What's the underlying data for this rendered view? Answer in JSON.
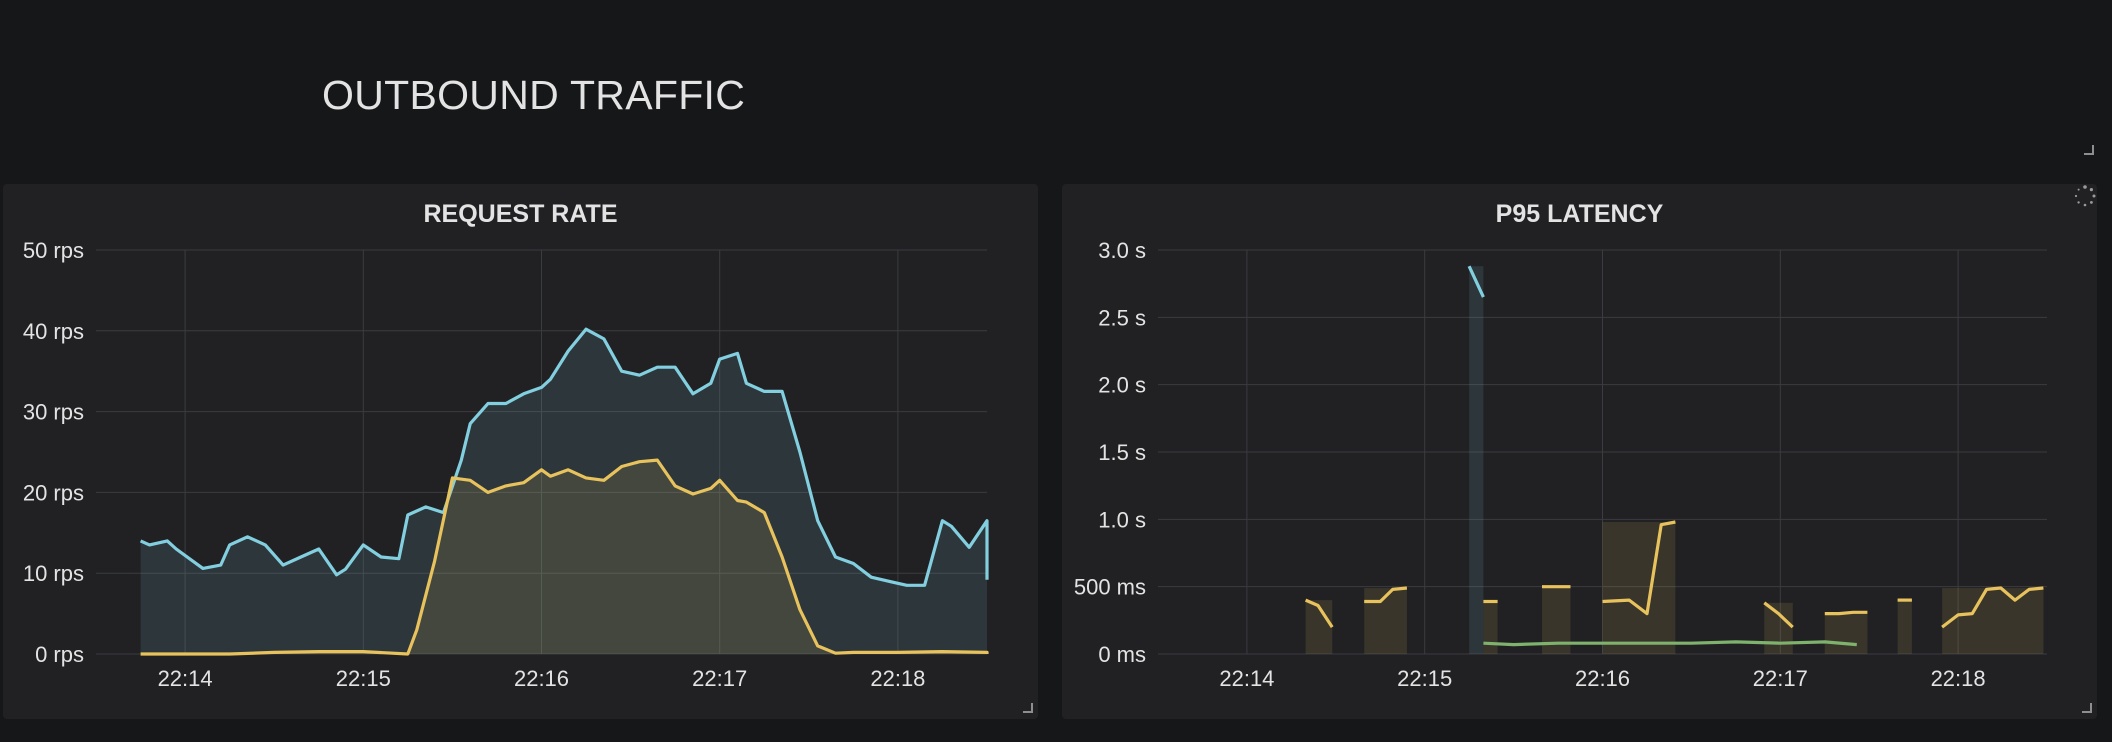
{
  "row": {
    "title": "OUTBOUND TRAFFIC"
  },
  "chart_data": [
    {
      "type": "area",
      "title": "REQUEST RATE",
      "ylim": [
        0,
        50
      ],
      "yticks": [
        0,
        10,
        20,
        30,
        40,
        50
      ],
      "ytick_labels": [
        "0 rps",
        "10 rps",
        "20 rps",
        "30 rps",
        "40 rps",
        "50 rps"
      ],
      "xlim": [
        -0.5,
        4.5
      ],
      "xticks": [
        0,
        1,
        2,
        3,
        4
      ],
      "xtick_labels": [
        "22:14",
        "22:15",
        "22:16",
        "22:17",
        "22:18"
      ],
      "grid": true,
      "series": [
        {
          "color": "#82cfe0",
          "x": [
            -0.25,
            -0.2,
            -0.1,
            -0.05,
            0.1,
            0.2,
            0.25,
            0.35,
            0.45,
            0.55,
            0.65,
            0.75,
            0.85,
            0.9,
            1.0,
            1.1,
            1.2,
            1.25,
            1.35,
            1.45,
            1.55,
            1.6,
            1.7,
            1.8,
            1.9,
            2.0,
            2.05,
            2.15,
            2.25,
            2.35,
            2.45,
            2.55,
            2.65,
            2.75,
            2.85,
            2.95,
            3.0,
            3.1,
            3.15,
            3.25,
            3.35,
            3.45,
            3.55,
            3.65,
            3.75,
            3.85,
            3.95,
            4.05,
            4.15,
            4.25,
            4.3,
            4.4,
            4.5,
            4.6,
            4.75
          ],
          "values": [
            14,
            13.5,
            14,
            13,
            10.6,
            11,
            13.5,
            14.5,
            13.5,
            11,
            12,
            13,
            9.8,
            10.5,
            13.5,
            12,
            11.8,
            17.2,
            18.2,
            17.5,
            24,
            28.5,
            31,
            31,
            32.2,
            33,
            34,
            37.5,
            40.2,
            39,
            35,
            34.5,
            35.5,
            35.5,
            32.2,
            33.5,
            36.5,
            37.2,
            33.5,
            32.5,
            32.5,
            25,
            16.5,
            12,
            11.2,
            9.5,
            9,
            8.5,
            8.5,
            16.5,
            15.8,
            13.2,
            16.5,
            15.5,
            9.2
          ]
        },
        {
          "color": "#e8c25c",
          "x": [
            -0.25,
            0.0,
            0.25,
            0.5,
            0.75,
            1.0,
            1.25,
            1.3,
            1.4,
            1.5,
            1.6,
            1.7,
            1.8,
            1.9,
            2.0,
            2.05,
            2.15,
            2.25,
            2.35,
            2.45,
            2.55,
            2.65,
            2.75,
            2.85,
            2.95,
            3.0,
            3.1,
            3.15,
            3.25,
            3.35,
            3.45,
            3.55,
            3.65,
            3.75,
            4.0,
            4.25,
            4.5,
            4.75
          ],
          "values": [
            0,
            0,
            0,
            0.2,
            0.3,
            0.3,
            0,
            3,
            11.5,
            21.8,
            21.5,
            20,
            20.8,
            21.2,
            22.8,
            22,
            22.8,
            21.8,
            21.5,
            23.2,
            23.8,
            24,
            20.8,
            19.8,
            20.5,
            21.5,
            19,
            18.8,
            17.5,
            12,
            5.5,
            1,
            0.1,
            0.2,
            0.2,
            0.3,
            0.2,
            0
          ]
        }
      ]
    },
    {
      "type": "line",
      "title": "P95 LATENCY",
      "ylim": [
        0,
        3.0
      ],
      "yticks": [
        0,
        0.5,
        1.0,
        1.5,
        2.0,
        2.5,
        3.0
      ],
      "ytick_labels": [
        "0 ms",
        "500 ms",
        "1.0 s",
        "1.5 s",
        "2.0 s",
        "2.5 s",
        "3.0 s"
      ],
      "xlim": [
        -0.5,
        4.5
      ],
      "xticks": [
        0,
        1,
        2,
        3,
        4
      ],
      "xtick_labels": [
        "22:14",
        "22:15",
        "22:16",
        "22:17",
        "22:18"
      ],
      "grid": true,
      "series": [
        {
          "color": "#82cfe0",
          "segments": [
            [
              [
                1.25,
                2.88
              ],
              [
                1.33,
                2.65
              ]
            ]
          ]
        },
        {
          "color": "#e8c25c",
          "segments": [
            [
              [
                0.33,
                0.4
              ],
              [
                0.4,
                0.36
              ],
              [
                0.48,
                0.2
              ]
            ],
            [
              [
                0.66,
                0.39
              ],
              [
                0.75,
                0.39
              ],
              [
                0.82,
                0.48
              ],
              [
                0.9,
                0.49
              ]
            ],
            [
              [
                1.33,
                0.39
              ],
              [
                1.41,
                0.39
              ]
            ],
            [
              [
                1.66,
                0.5
              ],
              [
                1.82,
                0.5
              ]
            ],
            [
              [
                2.0,
                0.39
              ],
              [
                2.15,
                0.4
              ],
              [
                2.25,
                0.3
              ],
              [
                2.33,
                0.96
              ],
              [
                2.41,
                0.98
              ]
            ],
            [
              [
                2.91,
                0.38
              ],
              [
                2.99,
                0.3
              ],
              [
                3.07,
                0.2
              ]
            ],
            [
              [
                3.25,
                0.3
              ],
              [
                3.33,
                0.3
              ],
              [
                3.41,
                0.31
              ],
              [
                3.49,
                0.31
              ]
            ],
            [
              [
                3.66,
                0.4
              ],
              [
                3.74,
                0.4
              ]
            ],
            [
              [
                3.91,
                0.2
              ],
              [
                4.0,
                0.29
              ],
              [
                4.08,
                0.3
              ],
              [
                4.16,
                0.48
              ],
              [
                4.24,
                0.49
              ],
              [
                4.32,
                0.4
              ],
              [
                4.4,
                0.48
              ],
              [
                4.48,
                0.49
              ]
            ]
          ]
        },
        {
          "color": "#7eb26d",
          "segments": [
            [
              [
                1.33,
                0.08
              ],
              [
                1.5,
                0.07
              ],
              [
                1.75,
                0.08
              ],
              [
                2.0,
                0.08
              ],
              [
                2.25,
                0.08
              ],
              [
                2.5,
                0.08
              ],
              [
                2.75,
                0.09
              ],
              [
                3.0,
                0.08
              ],
              [
                3.25,
                0.09
              ],
              [
                3.43,
                0.07
              ]
            ]
          ]
        }
      ],
      "bars": [
        {
          "x0": 0.33,
          "x1": 0.48,
          "value": 0.4,
          "color": "#e8c25c"
        },
        {
          "x0": 0.66,
          "x1": 0.9,
          "value": 0.49,
          "color": "#e8c25c"
        },
        {
          "x0": 1.25,
          "x1": 1.33,
          "value": 2.88,
          "color": "#82cfe0"
        },
        {
          "x0": 1.33,
          "x1": 1.41,
          "value": 0.39,
          "color": "#e8c25c"
        },
        {
          "x0": 1.66,
          "x1": 1.82,
          "value": 0.5,
          "color": "#e8c25c"
        },
        {
          "x0": 2.0,
          "x1": 2.41,
          "value": 0.98,
          "color": "#e8c25c"
        },
        {
          "x0": 2.91,
          "x1": 3.07,
          "value": 0.38,
          "color": "#e8c25c"
        },
        {
          "x0": 3.25,
          "x1": 3.49,
          "value": 0.31,
          "color": "#e8c25c"
        },
        {
          "x0": 3.66,
          "x1": 3.74,
          "value": 0.4,
          "color": "#e8c25c"
        },
        {
          "x0": 3.91,
          "x1": 4.48,
          "value": 0.49,
          "color": "#e8c25c"
        }
      ]
    }
  ]
}
